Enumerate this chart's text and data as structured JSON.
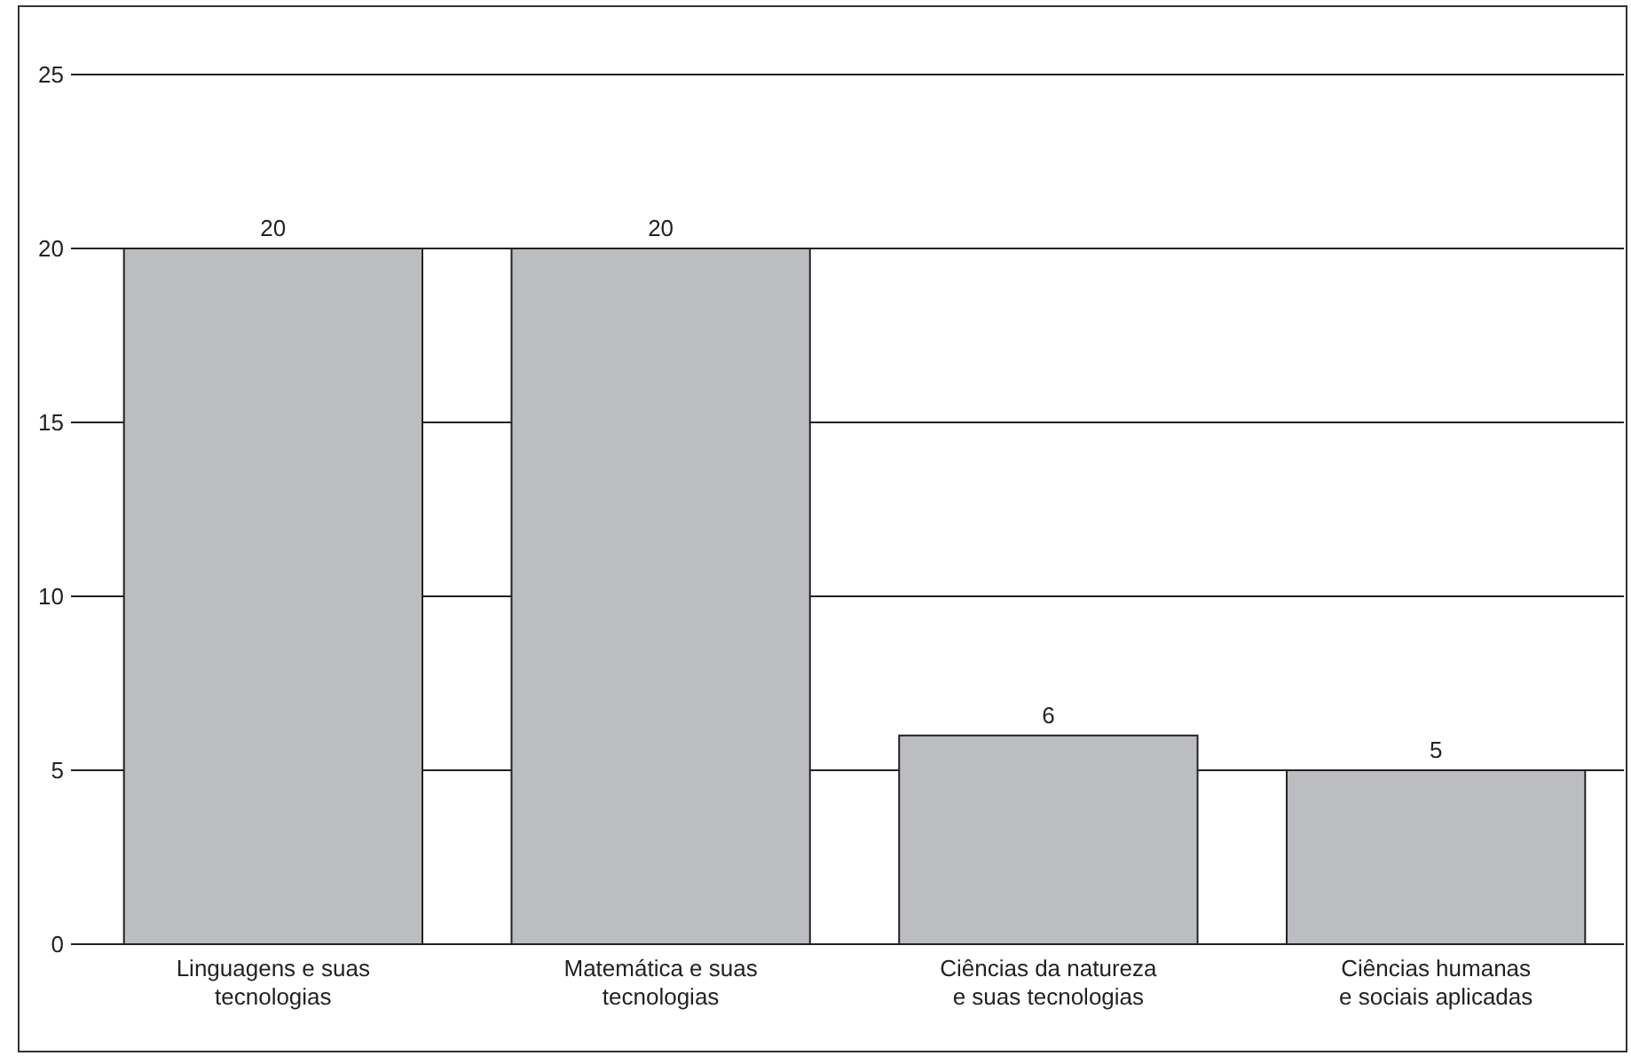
{
  "chart_data": {
    "type": "bar",
    "categories": [
      "Linguagens e suas\ntecnologias",
      "Matemática e suas\ntecnologias",
      "Ciências da natureza\ne suas tecnologias",
      "Ciências humanas\ne sociais aplicadas"
    ],
    "values": [
      20,
      20,
      6,
      5
    ],
    "color": "#bcbdc1",
    "ylim": [
      0,
      25
    ],
    "yticks": [
      0,
      5,
      10,
      15,
      20,
      25
    ],
    "grid": "y",
    "data_labels": true
  }
}
